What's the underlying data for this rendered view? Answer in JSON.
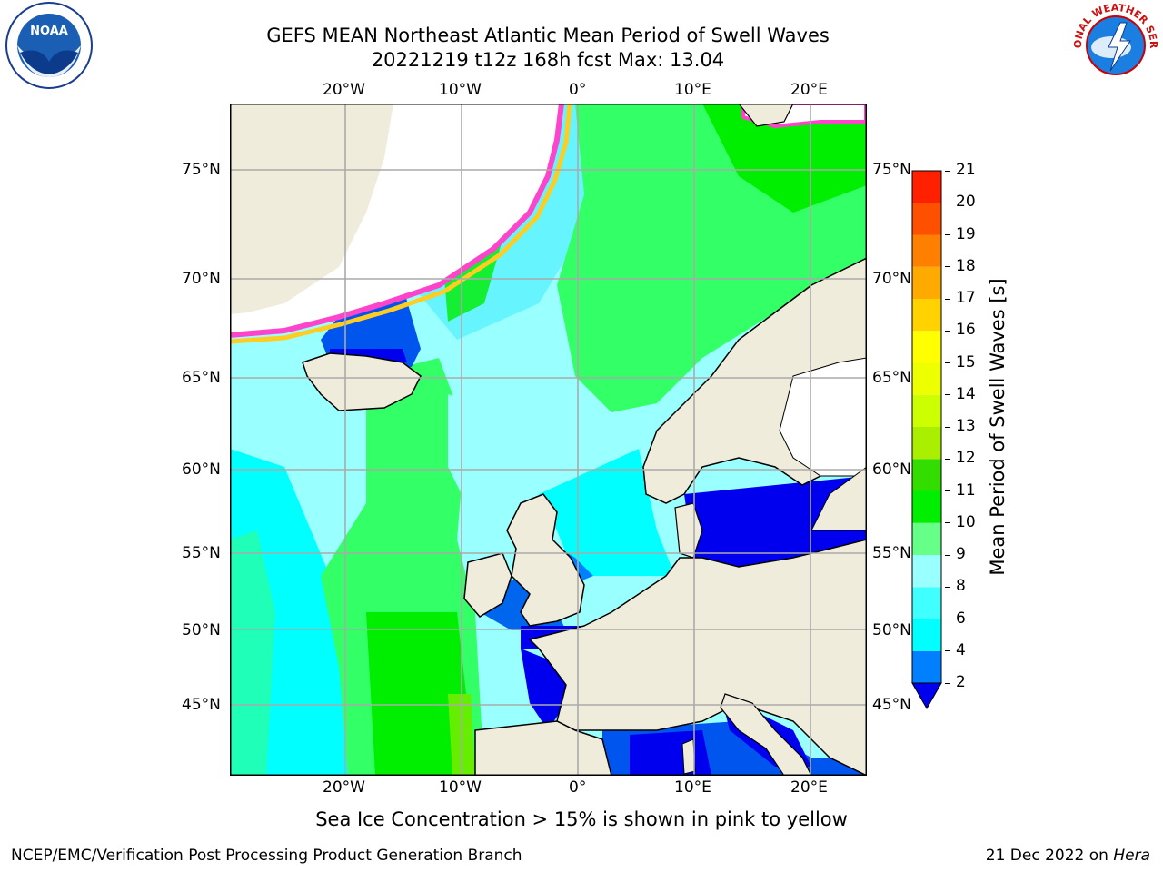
{
  "header": {
    "title_line1": "GEFS MEAN Northeast Atlantic Mean Period of Swell Waves",
    "title_line2": "20221219 t12z 168h fcst   Max: 13.04"
  },
  "logos": {
    "left": "NOAA",
    "right": "NATIONAL WEATHER SERVICE"
  },
  "map": {
    "lon_ticks_top": [
      "20°W",
      "10°W",
      "0°",
      "10°E",
      "20°E"
    ],
    "lon_ticks_bottom": [
      "20°W",
      "10°W",
      "0°",
      "10°E",
      "20°E"
    ],
    "lat_ticks_left": [
      "75°N",
      "70°N",
      "65°N",
      "60°N",
      "55°N",
      "50°N",
      "45°N"
    ],
    "lat_ticks_right": [
      "75°N",
      "70°N",
      "65°N",
      "60°N",
      "55°N",
      "50°N",
      "45°N"
    ],
    "land_color": "#efecdc",
    "ocean_colors": [
      "#00ffff",
      "#99ffff",
      "#33ff66",
      "#00ee00",
      "#0000ee",
      "#0077ff"
    ]
  },
  "colorbar": {
    "label": "Mean Period of Swell Waves [s]",
    "ticks": [
      "2",
      "4",
      "6",
      "8",
      "9",
      "10",
      "11",
      "12",
      "13",
      "14",
      "15",
      "16",
      "17",
      "18",
      "19",
      "20",
      "21"
    ],
    "colors": [
      "#0080ff",
      "#00ffff",
      "#40ffff",
      "#99ffff",
      "#66ff88",
      "#00ee00",
      "#33dd00",
      "#aaee00",
      "#ccff00",
      "#eeff00",
      "#ffff00",
      "#ffd200",
      "#ffaa00",
      "#ff8000",
      "#ff5000",
      "#ff2000"
    ]
  },
  "subtitle": "Sea Ice Concentration > 15% is shown in pink to yellow",
  "footer": {
    "left": "NCEP/EMC/Verification Post Processing Product Generation Branch",
    "right_prefix": "21 Dec 2022 on ",
    "right_italic": "Hera"
  }
}
